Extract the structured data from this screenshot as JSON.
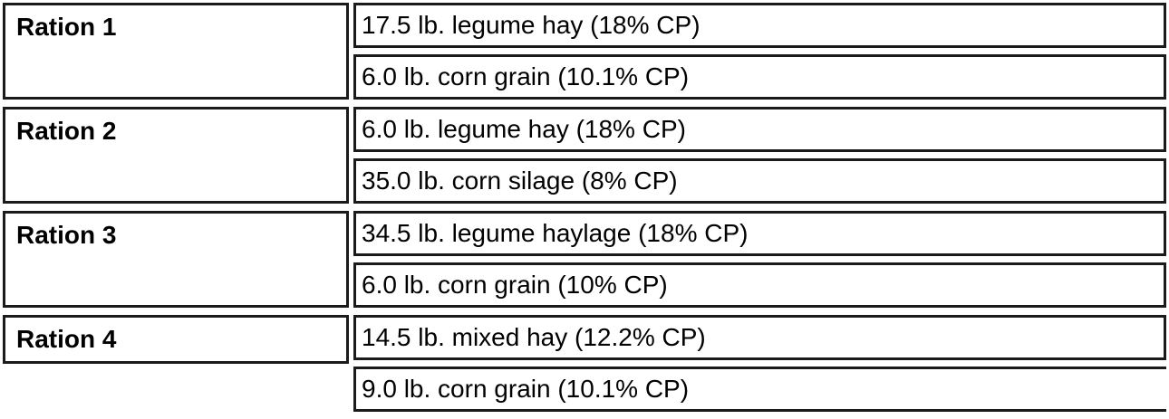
{
  "table": {
    "colors": {
      "border": "#1b1b1b",
      "text": "#000000",
      "background": "#ffffff"
    },
    "rations": [
      {
        "label": "Ration 1",
        "items": [
          "17.5 lb. legume hay (18% CP)",
          "6.0 lb. corn grain (10.1% CP)"
        ]
      },
      {
        "label": "Ration 2",
        "items": [
          "6.0 lb. legume hay (18% CP)",
          "35.0 lb. corn silage (8% CP)"
        ]
      },
      {
        "label": "Ration 3",
        "items": [
          "34.5 lb. legume haylage (18% CP)",
          "6.0 lb. corn grain (10% CP)"
        ]
      },
      {
        "label": "Ration 4",
        "items": [
          "14.5 lb. mixed hay (12.2% CP)",
          "9.0 lb. corn grain (10.1% CP)"
        ]
      }
    ]
  }
}
